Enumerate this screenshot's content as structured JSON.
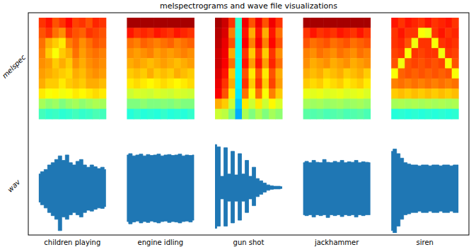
{
  "chart_data": {
    "type": "multi_panel",
    "title": "melspectrograms and wave file visualizations",
    "row_labels": [
      "melspec",
      "wav"
    ],
    "categories": [
      "children playing",
      "engine idling",
      "gun shot",
      "jackhammer",
      "siren"
    ],
    "color": "#1f77b4",
    "melspec": {
      "zlim": [
        0,
        1
      ],
      "cells": [
        [
          [
            0.8,
            0.82,
            0.78,
            0.8,
            0.83,
            0.79,
            0.8,
            0.78,
            0.81,
            0.8
          ],
          [
            0.78,
            0.8,
            0.76,
            0.74,
            0.8,
            0.78,
            0.77,
            0.8,
            0.79,
            0.78
          ],
          [
            0.76,
            0.72,
            0.7,
            0.68,
            0.75,
            0.77,
            0.74,
            0.76,
            0.78,
            0.77
          ],
          [
            0.75,
            0.7,
            0.66,
            0.7,
            0.72,
            0.76,
            0.73,
            0.75,
            0.76,
            0.75
          ],
          [
            0.74,
            0.73,
            0.7,
            0.72,
            0.7,
            0.74,
            0.72,
            0.74,
            0.75,
            0.74
          ],
          [
            0.73,
            0.72,
            0.71,
            0.7,
            0.69,
            0.72,
            0.71,
            0.73,
            0.74,
            0.73
          ],
          [
            0.72,
            0.7,
            0.7,
            0.68,
            0.7,
            0.71,
            0.7,
            0.72,
            0.72,
            0.71
          ],
          [
            0.68,
            0.66,
            0.67,
            0.65,
            0.66,
            0.68,
            0.67,
            0.68,
            0.69,
            0.68
          ],
          [
            0.55,
            0.52,
            0.54,
            0.5,
            0.53,
            0.55,
            0.52,
            0.54,
            0.56,
            0.55
          ],
          [
            0.42,
            0.4,
            0.41,
            0.39,
            0.4,
            0.42,
            0.4,
            0.41,
            0.43,
            0.42
          ]
        ],
        [
          [
            0.95,
            0.95,
            0.95,
            0.95,
            0.95,
            0.95,
            0.95,
            0.95,
            0.95,
            0.95
          ],
          [
            0.82,
            0.8,
            0.81,
            0.8,
            0.82,
            0.81,
            0.8,
            0.82,
            0.81,
            0.8
          ],
          [
            0.76,
            0.75,
            0.77,
            0.76,
            0.75,
            0.76,
            0.77,
            0.75,
            0.76,
            0.77
          ],
          [
            0.74,
            0.73,
            0.74,
            0.75,
            0.73,
            0.74,
            0.73,
            0.74,
            0.75,
            0.74
          ],
          [
            0.72,
            0.73,
            0.72,
            0.71,
            0.72,
            0.73,
            0.72,
            0.71,
            0.72,
            0.73
          ],
          [
            0.7,
            0.71,
            0.7,
            0.72,
            0.7,
            0.71,
            0.7,
            0.72,
            0.71,
            0.7
          ],
          [
            0.68,
            0.69,
            0.68,
            0.67,
            0.68,
            0.69,
            0.68,
            0.67,
            0.68,
            0.69
          ],
          [
            0.6,
            0.62,
            0.61,
            0.6,
            0.62,
            0.61,
            0.6,
            0.62,
            0.61,
            0.6
          ],
          [
            0.5,
            0.5,
            0.52,
            0.5,
            0.5,
            0.51,
            0.5,
            0.52,
            0.5,
            0.5
          ],
          [
            0.38,
            0.4,
            0.38,
            0.39,
            0.38,
            0.4,
            0.38,
            0.39,
            0.38,
            0.4
          ]
        ],
        [
          [
            0.95,
            0.9,
            0.8,
            0.4,
            0.85,
            0.78,
            0.85,
            0.78,
            0.85,
            0.8
          ],
          [
            0.93,
            0.88,
            0.75,
            0.38,
            0.82,
            0.72,
            0.82,
            0.72,
            0.82,
            0.76
          ],
          [
            0.92,
            0.86,
            0.78,
            0.36,
            0.84,
            0.75,
            0.84,
            0.75,
            0.83,
            0.78
          ],
          [
            0.9,
            0.85,
            0.72,
            0.35,
            0.8,
            0.7,
            0.8,
            0.7,
            0.8,
            0.74
          ],
          [
            0.9,
            0.84,
            0.76,
            0.35,
            0.82,
            0.73,
            0.82,
            0.73,
            0.81,
            0.76
          ],
          [
            0.88,
            0.82,
            0.7,
            0.34,
            0.78,
            0.68,
            0.78,
            0.68,
            0.78,
            0.72
          ],
          [
            0.86,
            0.8,
            0.72,
            0.33,
            0.8,
            0.7,
            0.8,
            0.7,
            0.79,
            0.73
          ],
          [
            0.84,
            0.78,
            0.68,
            0.32,
            0.76,
            0.66,
            0.76,
            0.66,
            0.75,
            0.7
          ],
          [
            0.72,
            0.7,
            0.6,
            0.3,
            0.68,
            0.6,
            0.68,
            0.6,
            0.67,
            0.62
          ],
          [
            0.6,
            0.58,
            0.5,
            0.28,
            0.56,
            0.5,
            0.56,
            0.5,
            0.55,
            0.52
          ]
        ],
        [
          [
            0.95,
            0.95,
            0.95,
            0.95,
            0.95,
            0.95,
            0.95,
            0.95,
            0.95,
            0.95
          ],
          [
            0.8,
            0.82,
            0.8,
            0.81,
            0.8,
            0.82,
            0.81,
            0.8,
            0.82,
            0.8
          ],
          [
            0.78,
            0.76,
            0.77,
            0.78,
            0.76,
            0.77,
            0.78,
            0.76,
            0.77,
            0.78
          ],
          [
            0.75,
            0.74,
            0.76,
            0.75,
            0.74,
            0.76,
            0.75,
            0.74,
            0.76,
            0.75
          ],
          [
            0.74,
            0.72,
            0.73,
            0.74,
            0.72,
            0.73,
            0.74,
            0.72,
            0.73,
            0.74
          ],
          [
            0.72,
            0.71,
            0.72,
            0.7,
            0.71,
            0.72,
            0.7,
            0.71,
            0.72,
            0.7
          ],
          [
            0.7,
            0.69,
            0.7,
            0.68,
            0.69,
            0.7,
            0.68,
            0.69,
            0.7,
            0.68
          ],
          [
            0.64,
            0.63,
            0.64,
            0.62,
            0.63,
            0.64,
            0.62,
            0.63,
            0.64,
            0.62
          ],
          [
            0.55,
            0.54,
            0.55,
            0.53,
            0.54,
            0.55,
            0.53,
            0.54,
            0.55,
            0.53
          ],
          [
            0.45,
            0.44,
            0.45,
            0.43,
            0.44,
            0.45,
            0.43,
            0.44,
            0.45,
            0.43
          ]
        ],
        [
          [
            0.82,
            0.8,
            0.82,
            0.81,
            0.8,
            0.82,
            0.8,
            0.81,
            0.82,
            0.8
          ],
          [
            0.8,
            0.82,
            0.8,
            0.8,
            0.66,
            0.64,
            0.8,
            0.82,
            0.8,
            0.81
          ],
          [
            0.8,
            0.81,
            0.78,
            0.65,
            0.8,
            0.8,
            0.66,
            0.8,
            0.81,
            0.8
          ],
          [
            0.79,
            0.8,
            0.66,
            0.8,
            0.79,
            0.8,
            0.8,
            0.65,
            0.8,
            0.79
          ],
          [
            0.78,
            0.65,
            0.78,
            0.79,
            0.78,
            0.79,
            0.78,
            0.79,
            0.66,
            0.78
          ],
          [
            0.66,
            0.77,
            0.78,
            0.77,
            0.78,
            0.77,
            0.78,
            0.77,
            0.78,
            0.66
          ],
          [
            0.75,
            0.76,
            0.75,
            0.76,
            0.75,
            0.76,
            0.75,
            0.76,
            0.75,
            0.76
          ],
          [
            0.7,
            0.71,
            0.7,
            0.71,
            0.7,
            0.71,
            0.7,
            0.71,
            0.7,
            0.71
          ],
          [
            0.55,
            0.56,
            0.55,
            0.56,
            0.55,
            0.56,
            0.55,
            0.56,
            0.55,
            0.56
          ],
          [
            0.38,
            0.39,
            0.38,
            0.39,
            0.38,
            0.39,
            0.38,
            0.39,
            0.38,
            0.39
          ]
        ]
      ]
    },
    "wav": {
      "ylim": [
        -1,
        1
      ],
      "upper": [
        [
          0.3,
          0.35,
          0.4,
          0.5,
          0.55,
          0.62,
          0.7,
          0.6,
          0.72,
          0.55,
          0.5,
          0.58,
          0.62,
          0.5,
          0.45,
          0.5,
          0.46,
          0.42,
          0.45,
          0.4
        ],
        [
          0.72,
          0.75,
          0.7,
          0.72,
          0.74,
          0.7,
          0.73,
          0.71,
          0.72,
          0.74,
          0.7,
          0.72,
          0.73,
          0.71,
          0.72,
          0.74,
          0.7,
          0.72,
          0.71,
          0.72
        ],
        [
          0.95,
          0.9,
          0.25,
          0.88,
          0.3,
          0.8,
          0.28,
          0.75,
          0.3,
          0.6,
          0.25,
          0.45,
          0.2,
          0.15,
          0.1,
          0.06,
          0.04,
          0.03,
          0.03,
          0.02
        ],
        [
          0.55,
          0.58,
          0.55,
          0.6,
          0.56,
          0.55,
          0.62,
          0.56,
          0.55,
          0.58,
          0.56,
          0.6,
          0.55,
          0.57,
          0.56,
          0.6,
          0.55,
          0.57,
          0.56,
          0.55
        ],
        [
          0.8,
          0.85,
          0.75,
          0.65,
          0.55,
          0.52,
          0.5,
          0.5,
          0.48,
          0.5,
          0.5,
          0.48,
          0.5,
          0.5,
          0.48,
          0.5,
          0.5,
          0.48,
          0.5,
          0.5
        ]
      ],
      "lower": [
        [
          -0.32,
          -0.38,
          -0.45,
          -0.55,
          -0.62,
          -0.7,
          -0.95,
          -0.65,
          -0.7,
          -0.6,
          -0.55,
          -0.6,
          -0.65,
          -0.55,
          -0.5,
          -0.52,
          -0.48,
          -0.45,
          -0.46,
          -0.42
        ],
        [
          -0.75,
          -0.8,
          -0.76,
          -0.74,
          -0.78,
          -0.75,
          -0.77,
          -0.74,
          -0.76,
          -0.78,
          -0.75,
          -0.74,
          -0.77,
          -0.75,
          -0.76,
          -0.78,
          -0.75,
          -0.74,
          -0.76,
          -0.72
        ],
        [
          -0.9,
          -0.85,
          -0.25,
          -0.85,
          -0.3,
          -0.78,
          -0.3,
          -0.72,
          -0.3,
          -0.55,
          -0.25,
          -0.4,
          -0.2,
          -0.15,
          -0.1,
          -0.06,
          -0.04,
          -0.03,
          -0.03,
          -0.02
        ],
        [
          -0.6,
          -0.62,
          -0.6,
          -0.65,
          -0.6,
          -0.62,
          -0.6,
          -0.66,
          -0.6,
          -0.62,
          -0.6,
          -0.64,
          -0.6,
          -0.62,
          -0.6,
          -0.65,
          -0.6,
          -0.62,
          -0.6,
          -0.6
        ],
        [
          -0.95,
          -1.0,
          -0.85,
          -0.7,
          -0.6,
          -0.58,
          -0.55,
          -0.55,
          -0.52,
          -0.55,
          -0.55,
          -0.52,
          -0.55,
          -0.55,
          -0.52,
          -0.55,
          -0.55,
          -0.52,
          -0.55,
          -0.55
        ]
      ]
    }
  }
}
